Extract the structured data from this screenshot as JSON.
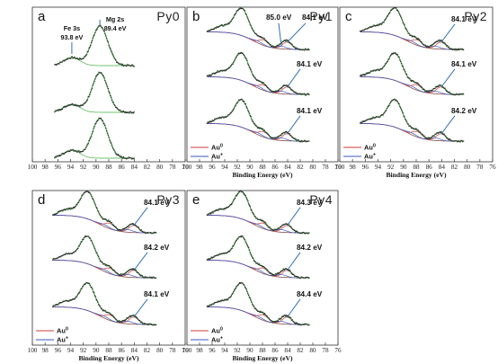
{
  "colors": {
    "data": "#2e2e2e",
    "fit_total": "#3fae3f",
    "background": "#8b4c44",
    "au0": "#d33a3a",
    "au_plus": "#3a57c6",
    "arrow": "#2f6fb0",
    "frame": "#333333"
  },
  "chart_data": [
    {
      "type": "line",
      "panel": "a",
      "name": "Py0",
      "xlabel": "",
      "xlim": [
        100,
        76
      ],
      "x_reversed": true,
      "xticks": [
        100,
        98,
        96,
        94,
        92,
        90,
        88,
        86,
        84,
        82,
        80,
        78,
        76
      ],
      "peaks": [
        {
          "label": "Fe 3s",
          "value": "93.8 eV",
          "x": 93.8
        },
        {
          "label": "Mg 2s",
          "value": "89.4 eV",
          "x": 89.4
        }
      ],
      "traces": 3
    },
    {
      "type": "line",
      "panel": "b",
      "name": "Py1",
      "xlabel": "Binding Energy (eV)",
      "xlim": [
        100,
        76
      ],
      "x_reversed": true,
      "xticks": [
        100,
        98,
        96,
        94,
        92,
        90,
        88,
        86,
        84,
        82,
        80,
        78,
        76
      ],
      "annotations": [
        [
          "85.0 eV",
          "84.1 eV"
        ],
        [
          "84.1 eV"
        ],
        [
          "84.1 eV"
        ]
      ],
      "legend": [
        "Au",
        "Au"
      ],
      "legend_sup": [
        "0",
        "+"
      ]
    },
    {
      "type": "line",
      "panel": "c",
      "name": "Py2",
      "xlabel": "Binding Energy (eV)",
      "xlim": [
        100,
        76
      ],
      "x_reversed": true,
      "xticks": [
        100,
        98,
        96,
        94,
        92,
        90,
        88,
        86,
        84,
        82,
        80,
        78,
        76
      ],
      "annotations": [
        [
          "84.1 eV"
        ],
        [
          "84.1 eV"
        ],
        [
          "84.2 eV"
        ]
      ],
      "legend": [
        "Au",
        "Au"
      ],
      "legend_sup": [
        "0",
        "+"
      ]
    },
    {
      "type": "line",
      "panel": "d",
      "name": "Py3",
      "xlabel": "Binding Energy (eV)",
      "xlim": [
        100,
        76
      ],
      "x_reversed": true,
      "xticks": [
        100,
        98,
        96,
        94,
        92,
        90,
        88,
        86,
        84,
        82,
        80,
        78,
        76
      ],
      "annotations": [
        [
          "84.1 eV"
        ],
        [
          "84.2 eV"
        ],
        [
          "84.1 eV"
        ]
      ],
      "legend": [
        "Au",
        "Au"
      ],
      "legend_sup": [
        "0",
        "+"
      ]
    },
    {
      "type": "line",
      "panel": "e",
      "name": "Py4",
      "xlabel": "Binding Energy (eV)",
      "xlim": [
        100,
        76
      ],
      "x_reversed": true,
      "xticks": [
        100,
        98,
        96,
        94,
        92,
        90,
        88,
        86,
        84,
        82,
        80,
        78,
        76
      ],
      "annotations": [
        [
          "84.3 eV"
        ],
        [
          "84.2 eV"
        ],
        [
          "84.4 eV"
        ]
      ],
      "legend": [
        "Au",
        "Au"
      ],
      "legend_sup": [
        "0",
        "+"
      ]
    }
  ]
}
